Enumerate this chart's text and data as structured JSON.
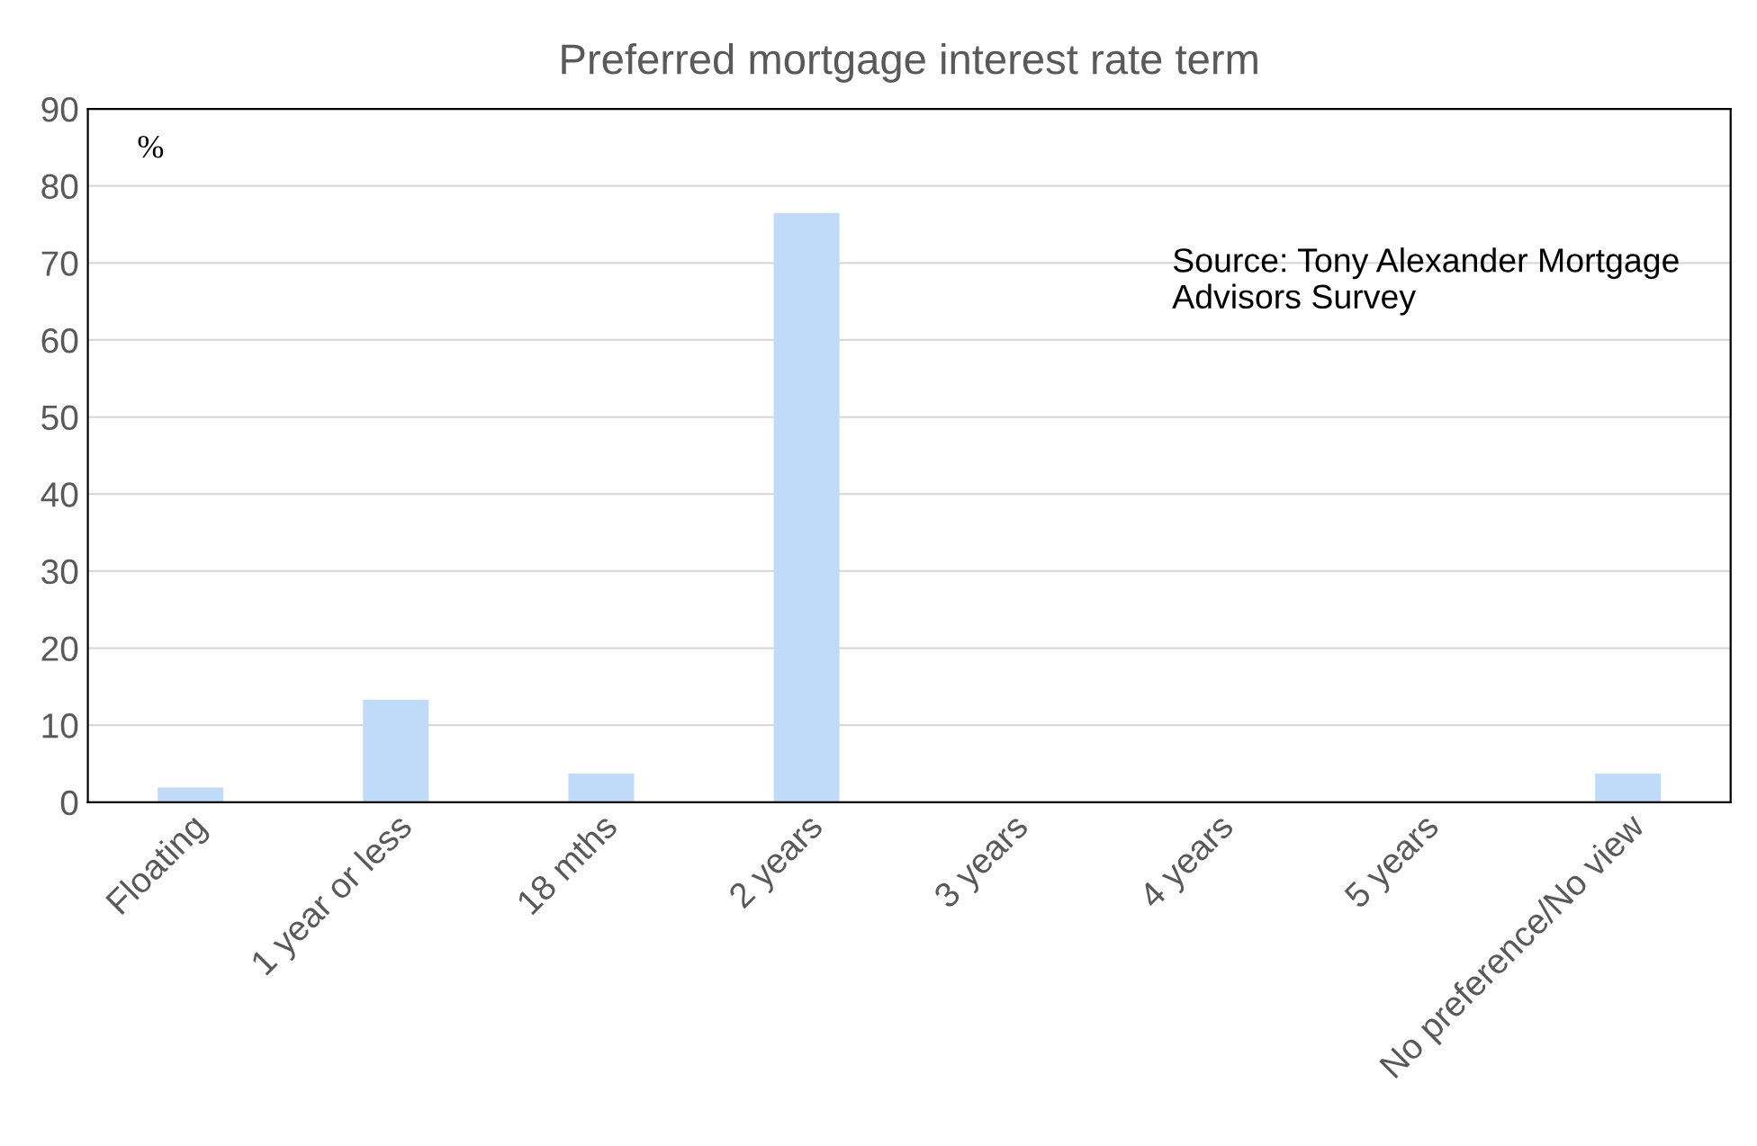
{
  "chart_data": {
    "type": "bar",
    "title": "Preferred mortgage interest rate term",
    "ylabel": "%",
    "categories": [
      "Floating",
      "1 year or less",
      "18 mths",
      "2 years",
      "3 years",
      "4 years",
      "5 years",
      "No preference/No view"
    ],
    "values": [
      1.9,
      13.3,
      3.7,
      76.5,
      0,
      0,
      0,
      3.7
    ],
    "color": "#bfdbf7",
    "ylim": [
      0,
      90
    ],
    "yticks": [
      0,
      10,
      20,
      30,
      40,
      50,
      60,
      70,
      80,
      90
    ],
    "grid": "y",
    "annotations": [
      "Source: Tony Alexander Mortgage Advisors Survey"
    ]
  }
}
